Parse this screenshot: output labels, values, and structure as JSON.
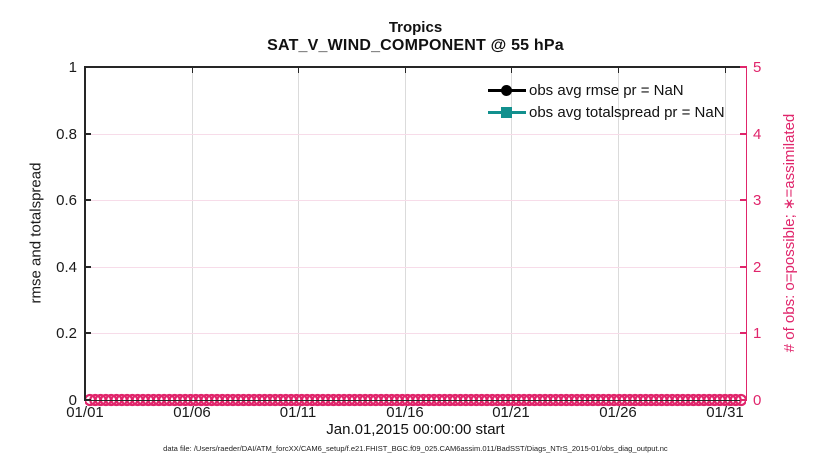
{
  "figure": {
    "title_line1": "Tropics",
    "title_line2": "SAT_V_WIND_COMPONENT @ 55 hPa",
    "xlabel": "Jan.01,2015 00:00:00 start",
    "caption": "data file: /Users/raeder/DAI/ATM_forcXX/CAM6_setup/f.e21.FHIST_BGC.f09_025.CAM6assim.011/BadSST/Diags_NTrS_2015-01/obs_diag_output.nc"
  },
  "left_axis": {
    "label": "rmse and totalspread",
    "ticks": [
      "0",
      "0.2",
      "0.4",
      "0.6",
      "0.8",
      "1"
    ],
    "min": 0,
    "max": 1,
    "color": "#1a1a1a"
  },
  "right_axis": {
    "label": "# of obs: o=possible; ∗=assimilated",
    "ticks": [
      "0",
      "1",
      "2",
      "3",
      "4",
      "5"
    ],
    "min": 0,
    "max": 5,
    "color": "#e0256b"
  },
  "x_axis": {
    "ticks": [
      "01/01",
      "01/06",
      "01/11",
      "01/16",
      "01/21",
      "01/26",
      "01/31"
    ],
    "tick_days": [
      0,
      5,
      10,
      15,
      20,
      25,
      30
    ],
    "span_days": 31
  },
  "legend": {
    "entries": [
      {
        "label": "obs avg rmse pr = NaN",
        "color": "#000000",
        "marker": "filled-circle"
      },
      {
        "label": "obs avg totalspread pr = NaN",
        "color": "#12908e",
        "marker": "filled-square"
      }
    ]
  },
  "colors": {
    "obs_count": "#e0256b",
    "spread": "#12908e",
    "rmse": "#000000",
    "grid_vertical": "#dbdbdb",
    "grid_horizontal": "#f7dce9",
    "spine": "#262626"
  },
  "chart_data": {
    "type": "line",
    "title": "Tropics",
    "subtitle": "SAT_V_WIND_COMPONENT @ 55 hPa",
    "xlabel": "Jan.01,2015 00:00:00 start",
    "x_tick_labels": [
      "01/01",
      "01/06",
      "01/11",
      "01/16",
      "01/21",
      "01/26",
      "01/31"
    ],
    "x_range_days": 31,
    "left_ylabel": "rmse and totalspread",
    "left_ylim": [
      0,
      1
    ],
    "right_ylabel": "# of obs: o=possible; ∗=assimilated",
    "right_ylim": [
      0,
      5
    ],
    "grid": true,
    "legend_position": "upper-right",
    "series": [
      {
        "name": "obs avg rmse",
        "axis": "left",
        "value": "NaN",
        "plotted": false
      },
      {
        "name": "obs avg totalspread",
        "axis": "left",
        "value": "NaN",
        "plotted": false
      },
      {
        "name": "obs count possible",
        "axis": "right",
        "marker": "o",
        "bins": 124,
        "constant_value": 0
      }
    ]
  }
}
